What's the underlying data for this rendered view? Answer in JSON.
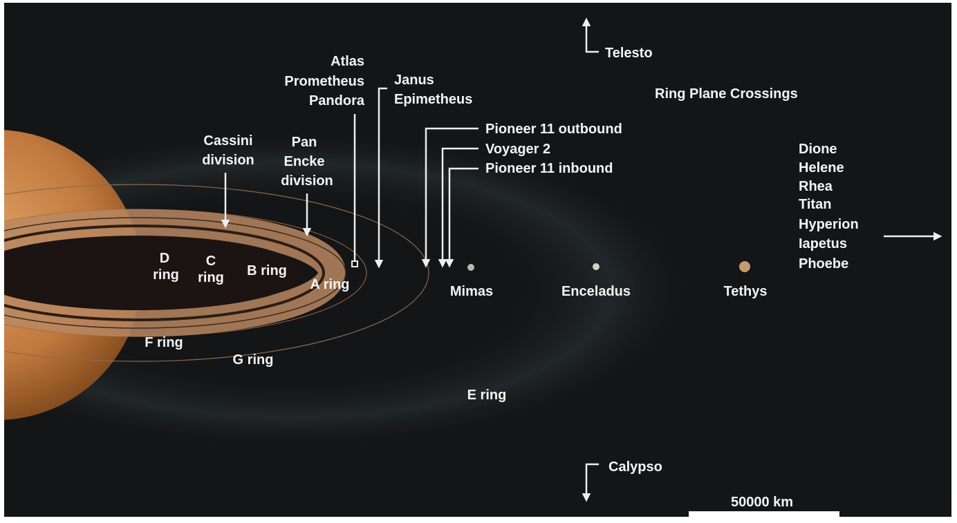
{
  "title": "Ring Plane Crossings",
  "shepherd_moons": [
    "Atlas",
    "Prometheus",
    "Pandora"
  ],
  "coorbital_moons": [
    "Janus",
    "Epimetheus"
  ],
  "telesto": "Telesto",
  "calypso": "Calypso",
  "crossings": [
    "Pioneer 11 outbound",
    "Voyager 2",
    "Pioneer 11 inbound"
  ],
  "cassini": [
    "Cassini",
    "division"
  ],
  "encke": [
    "Pan",
    "Encke",
    "division"
  ],
  "rings": {
    "d": [
      "D",
      "ring"
    ],
    "c": [
      "C",
      "ring"
    ],
    "b": "B ring",
    "a": "A ring",
    "f": "F ring",
    "g": "G ring",
    "e": "E ring"
  },
  "moons": [
    "Mimas",
    "Enceladus",
    "Tethys"
  ],
  "outer_moons": [
    "Dione",
    "Helene",
    "Rhea",
    "Titan",
    "Hyperion",
    "Iapetus",
    "Phoebe"
  ],
  "scale": "50000 km"
}
